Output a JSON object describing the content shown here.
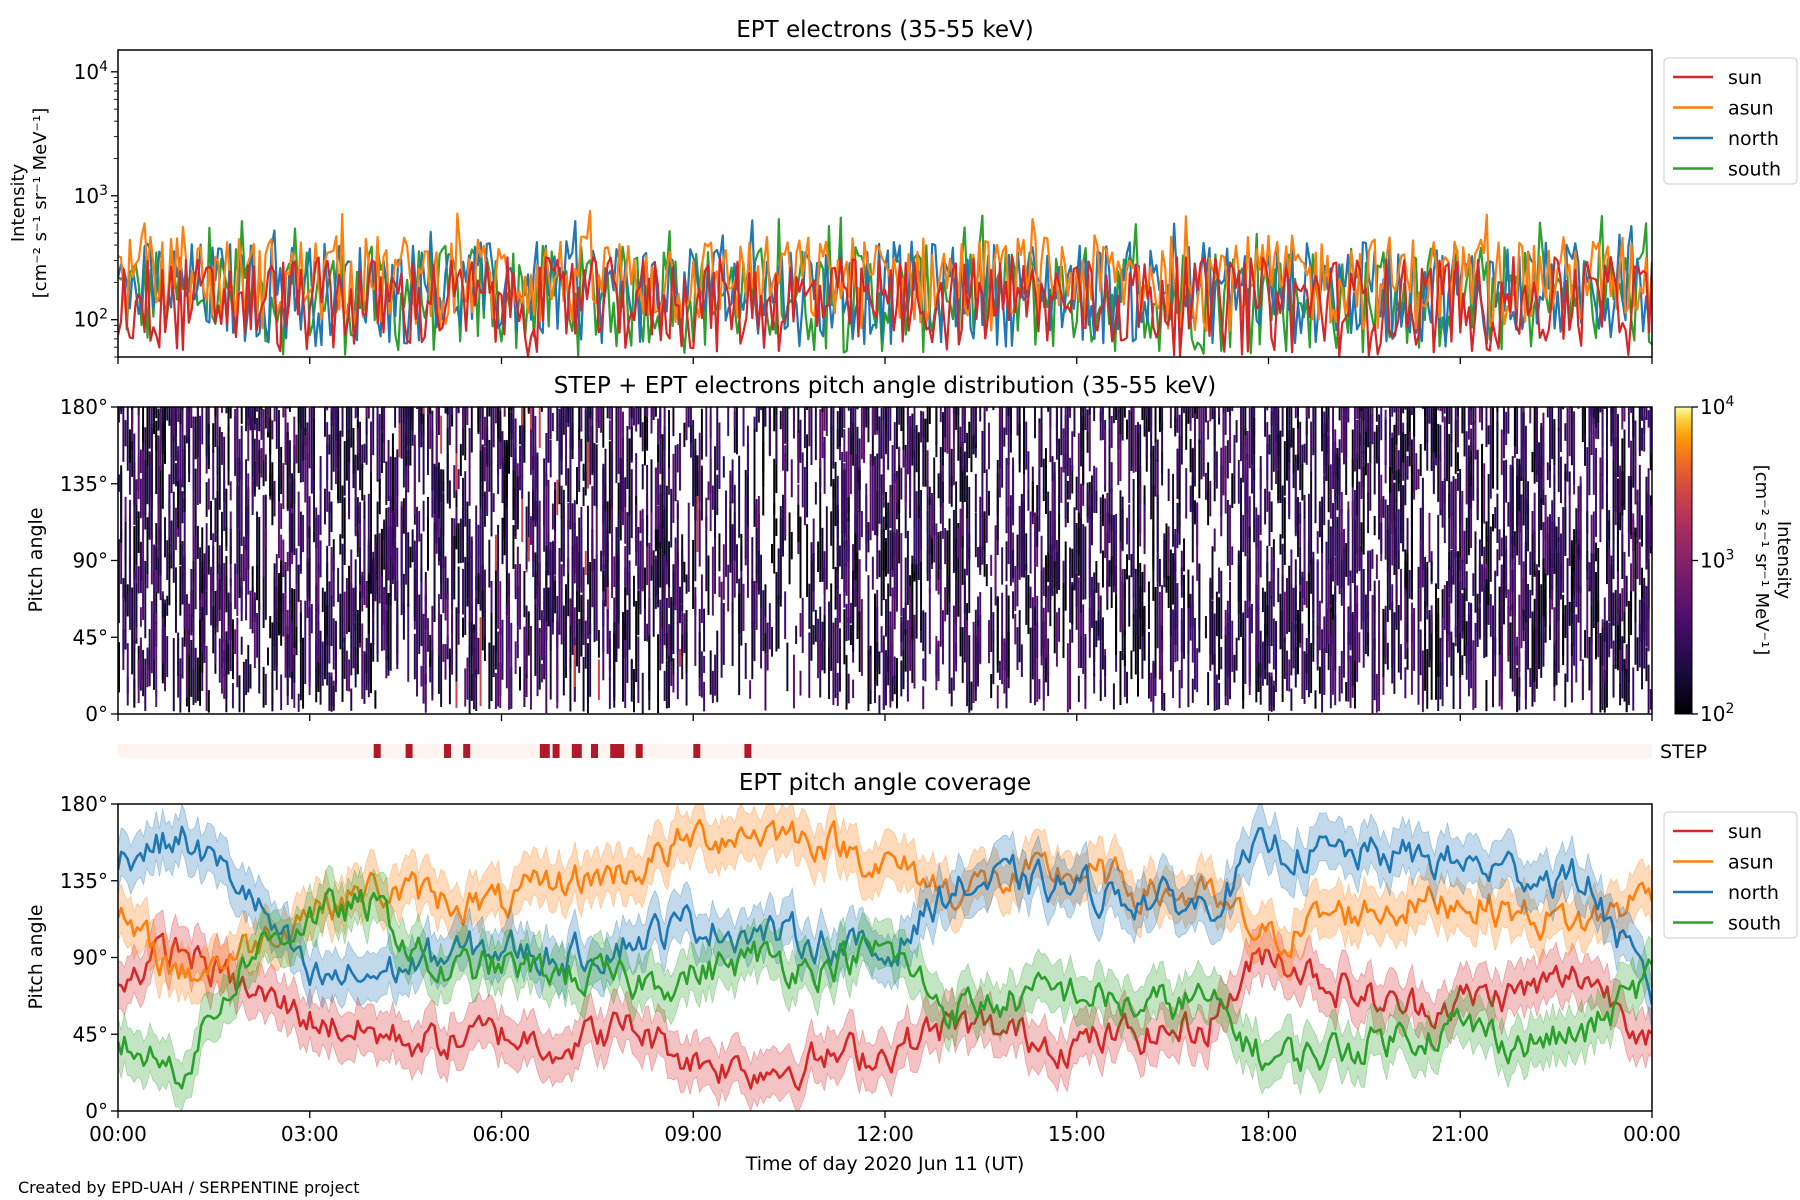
{
  "footer": "Created by EPD-UAH / SERPENTINE project",
  "xlabel": "Time of day 2020 Jun 11 (UT)",
  "xticks": [
    "00:00",
    "03:00",
    "06:00",
    "09:00",
    "12:00",
    "15:00",
    "18:00",
    "21:00",
    "00:00"
  ],
  "colors": {
    "sun": "#d62728",
    "asun": "#ff7f0e",
    "north": "#1f77b4",
    "south": "#2ca02c",
    "step": "#b2182b",
    "step_bg": "#fff5f0"
  },
  "chart_data": [
    {
      "type": "line",
      "title": "EPT electrons (35-55 keV)",
      "ylabel_line1": "Intensity",
      "ylabel_line2": "[cm⁻² s⁻¹ sr⁻¹ MeV⁻¹]",
      "yscale": "log",
      "ylim": [
        50,
        15000
      ],
      "yticks": [
        {
          "v": 100,
          "label": "10",
          "sup": "2"
        },
        {
          "v": 1000,
          "label": "10",
          "sup": "3"
        },
        {
          "v": 10000,
          "label": "10",
          "sup": "4"
        }
      ],
      "xlim_hours": [
        0,
        24
      ],
      "legend": "outside-right",
      "series": [
        {
          "name": "sun",
          "typical_range": [
            50,
            320
          ],
          "peak": 330
        },
        {
          "name": "asun",
          "typical_range": [
            80,
            480
          ],
          "peak": 780
        },
        {
          "name": "north",
          "typical_range": [
            60,
            430
          ],
          "peak": 680
        },
        {
          "name": "south",
          "typical_range": [
            50,
            400
          ],
          "peak": 700
        }
      ]
    },
    {
      "type": "heatmap",
      "title": "STEP + EPT electrons pitch angle distribution (35-55 keV)",
      "ylabel": "Pitch angle",
      "ylim": [
        0,
        180
      ],
      "yticks": [
        "0°",
        "45°",
        "90°",
        "135°",
        "180°"
      ],
      "xlim_hours": [
        0,
        24
      ],
      "colorbar": {
        "label": "Intensity [cm⁻² s⁻¹ sr⁻¹ MeV⁻¹]",
        "ticks": [
          {
            "label": "10",
            "sup": "2"
          },
          {
            "label": "10",
            "sup": "3"
          },
          {
            "label": "10",
            "sup": "4"
          }
        ],
        "scale": "log",
        "range": [
          100,
          10000
        ],
        "colormap": "inferno"
      },
      "step_strip": {
        "label": "STEP",
        "marks_hours": [
          4.0,
          4.5,
          5.1,
          5.4,
          6.6,
          6.8,
          7.1,
          7.4,
          7.7,
          7.8,
          8.1,
          9.0,
          9.8
        ]
      }
    },
    {
      "type": "line",
      "title": "EPT pitch angle coverage",
      "ylabel": "Pitch angle",
      "ylim": [
        0,
        180
      ],
      "yticks": [
        "0°",
        "45°",
        "90°",
        "135°",
        "180°"
      ],
      "xlim_hours": [
        0,
        24
      ],
      "legend": "outside-right",
      "series": [
        {
          "name": "sun",
          "x_hours": [
            0,
            1,
            2,
            3,
            4,
            5,
            6,
            7,
            8,
            9,
            10,
            11,
            12,
            13,
            14,
            15,
            16,
            17,
            18,
            19,
            20,
            21,
            22,
            23,
            24
          ],
          "values": [
            80,
            95,
            70,
            55,
            45,
            40,
            45,
            40,
            50,
            30,
            25,
            30,
            35,
            50,
            45,
            40,
            45,
            50,
            95,
            75,
            60,
            65,
            70,
            80,
            45
          ]
        },
        {
          "name": "asun",
          "x_hours": [
            0,
            1,
            2,
            3,
            4,
            5,
            6,
            7,
            8,
            9,
            10,
            11,
            12,
            13,
            14,
            15,
            16,
            17,
            18,
            19,
            20,
            21,
            22,
            23,
            24
          ],
          "values": [
            110,
            80,
            95,
            120,
            130,
            125,
            120,
            135,
            140,
            160,
            165,
            160,
            145,
            130,
            135,
            140,
            130,
            125,
            100,
            115,
            120,
            125,
            115,
            110,
            130
          ]
        },
        {
          "name": "north",
          "x_hours": [
            0,
            1,
            2,
            3,
            4,
            5,
            6,
            7,
            8,
            9,
            10,
            11,
            12,
            13,
            14,
            15,
            16,
            17,
            18,
            19,
            20,
            21,
            22,
            23,
            24
          ],
          "values": [
            150,
            160,
            130,
            75,
            80,
            90,
            95,
            90,
            100,
            110,
            105,
            100,
            90,
            130,
            135,
            130,
            125,
            120,
            155,
            150,
            150,
            145,
            140,
            135,
            65
          ]
        },
        {
          "name": "south",
          "x_hours": [
            0,
            1,
            2,
            3,
            4,
            5,
            6,
            7,
            8,
            9,
            10,
            11,
            12,
            13,
            14,
            15,
            16,
            17,
            18,
            19,
            20,
            21,
            22,
            23,
            24
          ],
          "values": [
            40,
            25,
            90,
            115,
            120,
            80,
            85,
            80,
            75,
            80,
            90,
            85,
            95,
            60,
            65,
            70,
            60,
            65,
            30,
            35,
            45,
            50,
            40,
            45,
            80
          ]
        }
      ]
    }
  ]
}
